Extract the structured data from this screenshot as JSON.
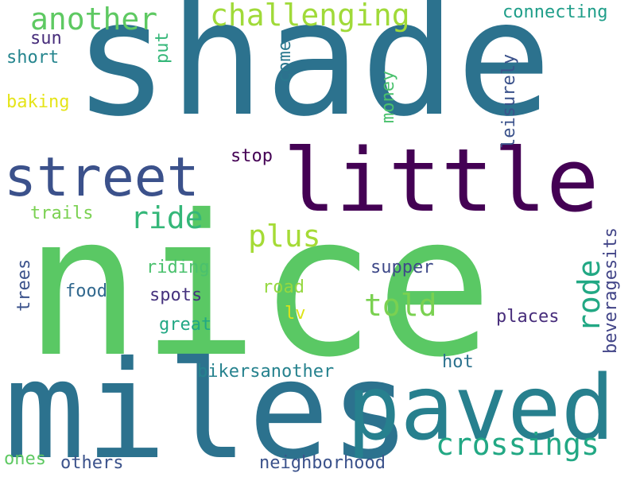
{
  "word_cloud": {
    "words": [
      {
        "key": "shade",
        "text": "shade",
        "color": "#2c728e"
      },
      {
        "key": "nice",
        "text": "nice",
        "color": "#5ac864"
      },
      {
        "key": "miles",
        "text": "miles",
        "color": "#2c728e"
      },
      {
        "key": "paved",
        "text": "paved",
        "color": "#27808e"
      },
      {
        "key": "little",
        "text": "little",
        "color": "#440154"
      },
      {
        "key": "street",
        "text": "street",
        "color": "#3b518b"
      },
      {
        "key": "another",
        "text": "another",
        "color": "#5ec962"
      },
      {
        "key": "challenging",
        "text": "challenging",
        "color": "#a0da39"
      },
      {
        "key": "connecting",
        "text": "connecting",
        "color": "#1f9e89"
      },
      {
        "key": "sun",
        "text": "sun",
        "color": "#472d7b"
      },
      {
        "key": "put",
        "text": "put",
        "color": "#35b779"
      },
      {
        "key": "short",
        "text": "short",
        "color": "#25858e"
      },
      {
        "key": "come",
        "text": "come",
        "color": "#2a788e"
      },
      {
        "key": "baking",
        "text": "baking",
        "color": "#e5e419"
      },
      {
        "key": "money",
        "text": "money",
        "color": "#4ac16d"
      },
      {
        "key": "leisurely",
        "text": "leisurely",
        "color": "#3b528b"
      },
      {
        "key": "stop",
        "text": "stop",
        "color": "#440154"
      },
      {
        "key": "ride",
        "text": "ride",
        "color": "#35b779"
      },
      {
        "key": "plus",
        "text": "plus",
        "color": "#a5db36"
      },
      {
        "key": "trails",
        "text": "trails",
        "color": "#7ad151"
      },
      {
        "key": "told",
        "text": "told",
        "color": "#7ad151"
      },
      {
        "key": "rode",
        "text": "rode",
        "color": "#22a884"
      },
      {
        "key": "beveragesits",
        "text": "beveragesits",
        "color": "#414487"
      },
      {
        "key": "riding",
        "text": "riding",
        "color": "#4ac16d"
      },
      {
        "key": "supper",
        "text": "supper",
        "color": "#3e4989"
      },
      {
        "key": "trees",
        "text": "trees",
        "color": "#3b528b"
      },
      {
        "key": "food",
        "text": "food",
        "color": "#31688e"
      },
      {
        "key": "spots",
        "text": "spots",
        "color": "#46337e"
      },
      {
        "key": "road",
        "text": "road",
        "color": "#95d840"
      },
      {
        "key": "lv",
        "text": "lv",
        "color": "#dde318"
      },
      {
        "key": "great",
        "text": "great",
        "color": "#22a884"
      },
      {
        "key": "places",
        "text": "places",
        "color": "#472d7b"
      },
      {
        "key": "hot",
        "text": "hot",
        "color": "#2c728e"
      },
      {
        "key": "bikersanother",
        "text": "bikersanother",
        "color": "#26828e"
      },
      {
        "key": "crossings",
        "text": "crossings",
        "color": "#22a884"
      },
      {
        "key": "ones",
        "text": "ones",
        "color": "#5ec962"
      },
      {
        "key": "others",
        "text": "others",
        "color": "#3b528b"
      },
      {
        "key": "neighborhood",
        "text": "neighborhood",
        "color": "#3b528b"
      }
    ]
  }
}
